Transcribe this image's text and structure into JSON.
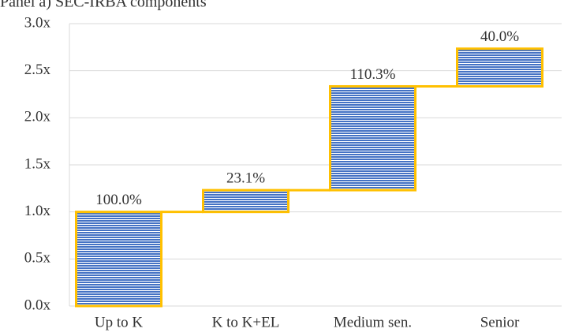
{
  "chart_data": {
    "type": "waterfall",
    "title": "Panel a) SEC-IRBA components",
    "categories": [
      "Up to K",
      "K to K+EL",
      "Medium sen.",
      "Senior"
    ],
    "values": [
      1.0,
      0.231,
      1.103,
      0.4
    ],
    "value_labels": [
      "100.0%",
      "23.1%",
      "110.3%",
      "40.0%"
    ],
    "color": "#4472c4",
    "edge_color": "#ffc000",
    "ylim": [
      0,
      3
    ],
    "yticks": [
      {
        "value": 0,
        "label": "0.0x"
      },
      {
        "value": 0.5,
        "label": "0.5x"
      },
      {
        "value": 1,
        "label": "1.0x"
      },
      {
        "value": 1.5,
        "label": "1.5x"
      },
      {
        "value": 2,
        "label": "2.0x"
      },
      {
        "value": 2.5,
        "label": "2.5x"
      },
      {
        "value": 3,
        "label": "3.0x"
      }
    ],
    "grid": true
  }
}
